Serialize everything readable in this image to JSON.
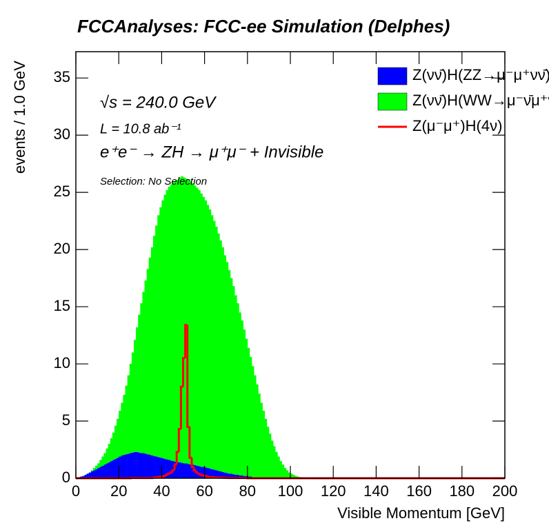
{
  "chart_data": {
    "type": "histogram",
    "title": "FCCAnalyses: FCC-ee Simulation (Delphes)",
    "x_label": "Visible Momentum [GeV]",
    "y_label": "events / 1.0 GeV",
    "annotations": [
      "√s = 240.0 GeV",
      "L = 10.8 ab⁻¹",
      "e⁺e⁻ → ZH → μ⁺μ⁻ + Invisible",
      "Selection: No Selection"
    ],
    "xlim": [
      0,
      200
    ],
    "ylim": [
      0,
      37.3
    ],
    "xticks": [
      0,
      20,
      40,
      60,
      80,
      100,
      120,
      140,
      160,
      180,
      200
    ],
    "yticks": [
      0,
      5,
      10,
      15,
      20,
      25,
      30,
      35
    ],
    "stacked": true,
    "legend": "top-right",
    "bins": [
      0,
      1,
      2,
      3,
      4,
      5,
      6,
      7,
      8,
      9,
      10,
      11,
      12,
      13,
      14,
      15,
      16,
      17,
      18,
      19,
      20,
      21,
      22,
      23,
      24,
      25,
      26,
      27,
      28,
      29,
      30,
      31,
      32,
      33,
      34,
      35,
      36,
      37,
      38,
      39,
      40,
      41,
      42,
      43,
      44,
      45,
      46,
      47,
      48,
      49,
      50,
      51,
      52,
      53,
      54,
      55,
      56,
      57,
      58,
      59,
      60,
      61,
      62,
      63,
      64,
      65,
      66,
      67,
      68,
      69,
      70,
      71,
      72,
      73,
      74,
      75,
      76,
      77,
      78,
      79,
      80,
      81,
      82,
      83,
      84,
      85,
      86,
      87,
      88,
      89,
      90,
      91,
      92,
      93,
      94,
      95,
      96,
      97,
      98,
      99,
      100,
      101,
      102,
      103,
      104,
      105,
      106,
      107,
      108,
      109,
      110,
      200
    ],
    "series": [
      {
        "name": "Z(νν̄)H(ZZ→μ⁻μ⁺νν̄)",
        "color": "#0000ff",
        "draw": "fill",
        "values": [
          0.05,
          0.1,
          0.15,
          0.2,
          0.3,
          0.4,
          0.5,
          0.6,
          0.7,
          0.8,
          0.9,
          1.0,
          1.1,
          1.2,
          1.3,
          1.4,
          1.5,
          1.6,
          1.7,
          1.8,
          1.9,
          2.0,
          2.05,
          2.1,
          2.15,
          2.2,
          2.25,
          2.3,
          2.3,
          2.25,
          2.2,
          2.2,
          2.15,
          2.1,
          2.05,
          2.0,
          1.95,
          1.9,
          1.85,
          1.8,
          1.75,
          1.7,
          1.65,
          1.6,
          1.55,
          1.5,
          1.45,
          1.4,
          1.4,
          1.35,
          1.3,
          1.3,
          1.25,
          1.2,
          1.2,
          1.15,
          1.1,
          1.05,
          1.0,
          1.0,
          0.95,
          0.9,
          0.85,
          0.8,
          0.75,
          0.7,
          0.65,
          0.6,
          0.55,
          0.5,
          0.45,
          0.4,
          0.4,
          0.35,
          0.3,
          0.3,
          0.25,
          0.25,
          0.2,
          0.2,
          0.15,
          0.15,
          0.1,
          0.1,
          0.1,
          0.05,
          0.05,
          0.05,
          0.05,
          0.05,
          0,
          0,
          0,
          0,
          0,
          0,
          0,
          0,
          0,
          0,
          0,
          0,
          0,
          0,
          0,
          0,
          0,
          0,
          0,
          0,
          0
        ]
      },
      {
        "name": "Z(νν̄)H(WW→μ⁻ν̄μ⁺ν)",
        "color": "#00ff00",
        "draw": "fill",
        "values": [
          0,
          0,
          0,
          0,
          0,
          0,
          0,
          0.1,
          0.2,
          0.3,
          0.4,
          0.6,
          0.8,
          1.0,
          1.3,
          1.6,
          2.0,
          2.4,
          2.9,
          3.4,
          4.0,
          4.6,
          5.25,
          6.0,
          6.85,
          7.8,
          8.75,
          9.8,
          10.9,
          12.05,
          13.1,
          14.1,
          15.15,
          16.2,
          17.25,
          18.2,
          19.25,
          20.2,
          21.15,
          21.9,
          22.55,
          23.1,
          23.55,
          23.9,
          24.15,
          24.4,
          24.55,
          24.7,
          24.9,
          25.05,
          25.0,
          24.9,
          24.85,
          24.8,
          24.6,
          24.45,
          24.3,
          24.15,
          23.9,
          23.6,
          23.35,
          23.0,
          22.65,
          22.2,
          21.75,
          21.3,
          20.75,
          20.2,
          19.65,
          19.0,
          18.45,
          17.8,
          17.1,
          16.45,
          15.7,
          15.0,
          14.25,
          13.55,
          12.8,
          12.0,
          11.25,
          10.45,
          9.7,
          8.9,
          8.1,
          7.35,
          6.55,
          5.85,
          5.15,
          4.45,
          3.9,
          3.3,
          2.8,
          2.3,
          1.9,
          1.5,
          1.2,
          0.9,
          0.7,
          0.5,
          0.4,
          0.3,
          0.2,
          0.15,
          0.1,
          0.1,
          0.05,
          0.05,
          0.02,
          0.01,
          0
        ]
      },
      {
        "name": "Z(μ⁻μ⁺)H(4ν)",
        "color": "#ff0000",
        "draw": "line",
        "values": [
          0,
          0,
          0,
          0,
          0,
          0,
          0,
          0,
          0,
          0,
          0,
          0,
          0,
          0,
          0,
          0,
          0,
          0,
          0,
          0,
          0,
          0,
          0,
          0,
          0,
          0,
          0.02,
          0.02,
          0.02,
          0.02,
          0.02,
          0.02,
          0.02,
          0.02,
          0.02,
          0.02,
          0.05,
          0.07,
          0.1,
          0.12,
          0.15,
          0.2,
          0.3,
          0.4,
          0.5,
          0.7,
          1.2,
          2.3,
          4.3,
          8.0,
          10.5,
          13.4,
          4.5,
          1.8,
          1.0,
          0.7,
          0.5,
          0.4,
          0.3,
          0.25,
          0.2,
          0.15,
          0.1,
          0.1,
          0.08,
          0.07,
          0.06,
          0.05,
          0.05,
          0.04,
          0.03,
          0.02,
          0.02,
          0.02,
          0.02,
          0.02,
          0.02,
          0.02,
          0.02,
          0.02,
          0,
          0,
          0,
          0,
          0,
          0,
          0,
          0,
          0,
          0,
          0,
          0,
          0,
          0,
          0,
          0,
          0,
          0,
          0,
          0,
          0,
          0,
          0,
          0,
          0,
          0,
          0,
          0,
          0,
          0,
          0,
          0
        ]
      }
    ]
  }
}
